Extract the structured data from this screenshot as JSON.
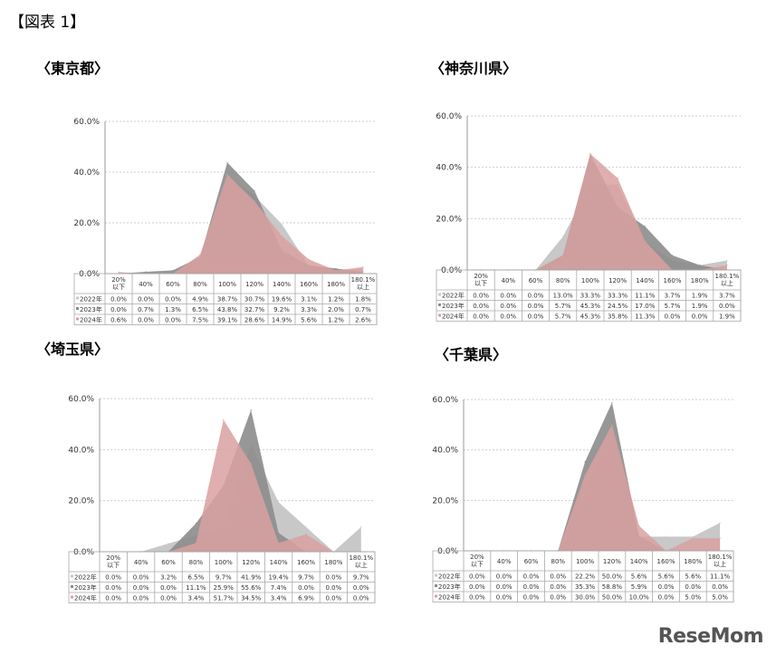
{
  "figure_label": "【図表 1】",
  "logo_text": "ReseMom",
  "colors": {
    "s2022": "#c8c8c8",
    "s2023": "#8c8c8c",
    "s2024": "#d9a0a0",
    "s2024_alpha": 0.85
  },
  "chart_data": [
    {
      "type": "area",
      "title": "〈東京都〉",
      "categories": [
        "20%以下",
        "40%",
        "60%",
        "80%",
        "100%",
        "120%",
        "140%",
        "160%",
        "180%",
        "180.1%以上"
      ],
      "y_ticks": [
        "0.0%",
        "20.0%",
        "40.0%",
        "60.0%"
      ],
      "ylim": [
        0,
        60
      ],
      "series": [
        {
          "name": "2022年",
          "values": [
            0.0,
            0.0,
            0.0,
            4.9,
            38.7,
            30.7,
            19.6,
            3.1,
            1.2,
            1.8
          ],
          "labels": [
            "0.0%",
            "0.0%",
            "0.0%",
            "4.9%",
            "38.7%",
            "30.7%",
            "19.6%",
            "3.1%",
            "1.2%",
            "1.8%"
          ]
        },
        {
          "name": "2023年",
          "values": [
            0.0,
            0.7,
            1.3,
            6.5,
            43.8,
            32.7,
            9.2,
            3.3,
            2.0,
            0.7
          ],
          "labels": [
            "0.0%",
            "0.7%",
            "1.3%",
            "6.5%",
            "43.8%",
            "32.7%",
            "9.2%",
            "3.3%",
            "2.0%",
            "0.7%"
          ]
        },
        {
          "name": "2024年",
          "values": [
            0.6,
            0.0,
            0.0,
            7.5,
            39.1,
            28.6,
            14.9,
            5.6,
            1.2,
            2.6
          ],
          "labels": [
            "0.6%",
            "0.0%",
            "0.0%",
            "7.5%",
            "39.1%",
            "28.6%",
            "14.9%",
            "5.6%",
            "1.2%",
            "2.6%"
          ]
        }
      ]
    },
    {
      "type": "area",
      "title": "〈神奈川県〉",
      "categories": [
        "20%以下",
        "40%",
        "60%",
        "80%",
        "100%",
        "120%",
        "140%",
        "160%",
        "180%",
        "180.1%以上"
      ],
      "y_ticks": [
        "0.0%",
        "20.0%",
        "40.0%",
        "60.0%"
      ],
      "ylim": [
        0,
        60
      ],
      "series": [
        {
          "name": "2022年",
          "values": [
            0.0,
            0.0,
            0.0,
            13.0,
            33.3,
            33.3,
            11.1,
            3.7,
            1.9,
            3.7
          ],
          "labels": [
            "0.0%",
            "0.0%",
            "0.0%",
            "13.0%",
            "33.3%",
            "33.3%",
            "11.1%",
            "3.7%",
            "1.9%",
            "3.7%"
          ]
        },
        {
          "name": "2023年",
          "values": [
            0.0,
            0.0,
            0.0,
            5.7,
            45.3,
            24.5,
            17.0,
            5.7,
            1.9,
            0.0
          ],
          "labels": [
            "0.0%",
            "0.0%",
            "0.0%",
            "5.7%",
            "45.3%",
            "24.5%",
            "17.0%",
            "5.7%",
            "1.9%",
            "0.0%"
          ]
        },
        {
          "name": "2024年",
          "values": [
            0.0,
            0.0,
            0.0,
            5.7,
            45.3,
            35.8,
            11.3,
            0.0,
            0.0,
            1.9
          ],
          "labels": [
            "0.0%",
            "0.0%",
            "0.0%",
            "5.7%",
            "45.3%",
            "35.8%",
            "11.3%",
            "0.0%",
            "0.0%",
            "1.9%"
          ]
        }
      ]
    },
    {
      "type": "area",
      "title": "〈埼玉県〉",
      "categories": [
        "20%以下",
        "40%",
        "60%",
        "80%",
        "100%",
        "120%",
        "140%",
        "160%",
        "180%",
        "180.1%以上"
      ],
      "y_ticks": [
        "0.0%",
        "20.0%",
        "40.0%",
        "60.0%"
      ],
      "ylim": [
        0,
        60
      ],
      "series": [
        {
          "name": "2022年",
          "values": [
            0.0,
            0.0,
            3.2,
            6.5,
            9.7,
            41.9,
            19.4,
            9.7,
            0.0,
            9.7
          ],
          "labels": [
            "0.0%",
            "0.0%",
            "3.2%",
            "6.5%",
            "9.7%",
            "41.9%",
            "19.4%",
            "9.7%",
            "0.0%",
            "9.7%"
          ]
        },
        {
          "name": "2023年",
          "values": [
            0.0,
            0.0,
            0.0,
            11.1,
            25.9,
            55.6,
            7.4,
            0.0,
            0.0,
            0.0
          ],
          "labels": [
            "0.0%",
            "0.0%",
            "0.0%",
            "11.1%",
            "25.9%",
            "55.6%",
            "7.4%",
            "0.0%",
            "0.0%",
            "0.0%"
          ]
        },
        {
          "name": "2024年",
          "values": [
            0.0,
            0.0,
            0.0,
            3.4,
            51.7,
            34.5,
            3.4,
            6.9,
            0.0,
            0.0
          ],
          "labels": [
            "0.0%",
            "0.0%",
            "0.0%",
            "3.4%",
            "51.7%",
            "34.5%",
            "3.4%",
            "6.9%",
            "0.0%",
            "0.0%"
          ]
        }
      ]
    },
    {
      "type": "area",
      "title": "〈千葉県〉",
      "categories": [
        "20%以下",
        "40%",
        "60%",
        "80%",
        "100%",
        "120%",
        "140%",
        "160%",
        "180%",
        "180.1%以上"
      ],
      "y_ticks": [
        "0.0%",
        "20.0%",
        "40.0%",
        "60.0%"
      ],
      "ylim": [
        0,
        60
      ],
      "series": [
        {
          "name": "2022年",
          "values": [
            0.0,
            0.0,
            0.0,
            0.0,
            22.2,
            50.0,
            5.6,
            5.6,
            5.6,
            11.1
          ],
          "labels": [
            "0.0%",
            "0.0%",
            "0.0%",
            "0.0%",
            "22.2%",
            "50.0%",
            "5.6%",
            "5.6%",
            "5.6%",
            "11.1%"
          ]
        },
        {
          "name": "2023年",
          "values": [
            0.0,
            0.0,
            0.0,
            0.0,
            35.3,
            58.8,
            5.9,
            0.0,
            0.0,
            0.0
          ],
          "labels": [
            "0.0%",
            "0.0%",
            "0.0%",
            "0.0%",
            "35.3%",
            "58.8%",
            "5.9%",
            "0.0%",
            "0.0%",
            "0.0%"
          ]
        },
        {
          "name": "2024年",
          "values": [
            0.0,
            0.0,
            0.0,
            0.0,
            30.0,
            50.0,
            10.0,
            0.0,
            5.0,
            5.0
          ],
          "labels": [
            "0.0%",
            "0.0%",
            "0.0%",
            "0.0%",
            "30.0%",
            "50.0%",
            "10.0%",
            "0.0%",
            "5.0%",
            "5.0%"
          ]
        }
      ]
    }
  ]
}
